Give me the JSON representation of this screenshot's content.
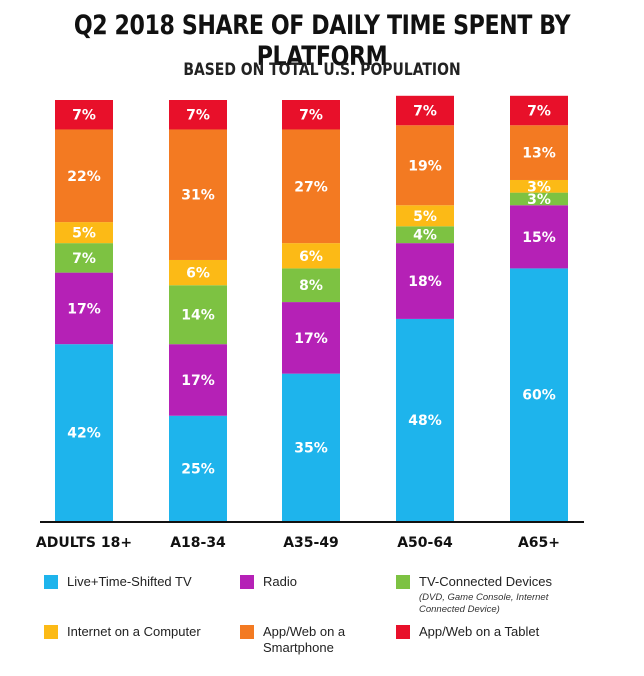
{
  "chart_data": {
    "type": "bar",
    "stacked": true,
    "title": "Q2 2018 SHARE OF DAILY TIME SPENT BY PLATFORM",
    "subtitle": "BASED ON TOTAL U.S. POPULATION",
    "categories": [
      "ADULTS 18+",
      "A18-34",
      "A35-49",
      "A50-64",
      "A65+"
    ],
    "ylim": [
      0,
      100
    ],
    "series": [
      {
        "name": "Live+Time-Shifted TV",
        "color": "#1eb4ec",
        "values": [
          42,
          25,
          35,
          48,
          60
        ],
        "labels": [
          "42%",
          "25%",
          "35%",
          "48%",
          "60%"
        ]
      },
      {
        "name": "Radio",
        "color": "#b521b6",
        "values": [
          17,
          17,
          17,
          18,
          15
        ],
        "labels": [
          "17%",
          "17%",
          "17%",
          "18%",
          "15%"
        ]
      },
      {
        "name": "TV-Connected Devices",
        "note": "(DVD, Game Console, Internet Connected Device)",
        "color": "#7dc242",
        "values": [
          7,
          14,
          8,
          4,
          3
        ],
        "labels": [
          "7%",
          "14%",
          "8%",
          "4%",
          "3%"
        ]
      },
      {
        "name": "Internet on a Computer",
        "color": "#fcba16",
        "values": [
          5,
          6,
          6,
          5,
          3
        ],
        "labels": [
          "5%",
          "6%",
          "6%",
          "5%",
          "3%"
        ]
      },
      {
        "name": "App/Web on a Smartphone",
        "color": "#f37a22",
        "values": [
          22,
          31,
          27,
          19,
          13
        ],
        "labels": [
          "22%",
          "31%",
          "27%",
          "19%",
          "13%"
        ]
      },
      {
        "name": "App/Web on a Tablet",
        "color": "#e8102a",
        "values": [
          7,
          7,
          7,
          7,
          7
        ],
        "labels": [
          "7%",
          "7%",
          "7%",
          "7%",
          "7%"
        ]
      }
    ]
  }
}
